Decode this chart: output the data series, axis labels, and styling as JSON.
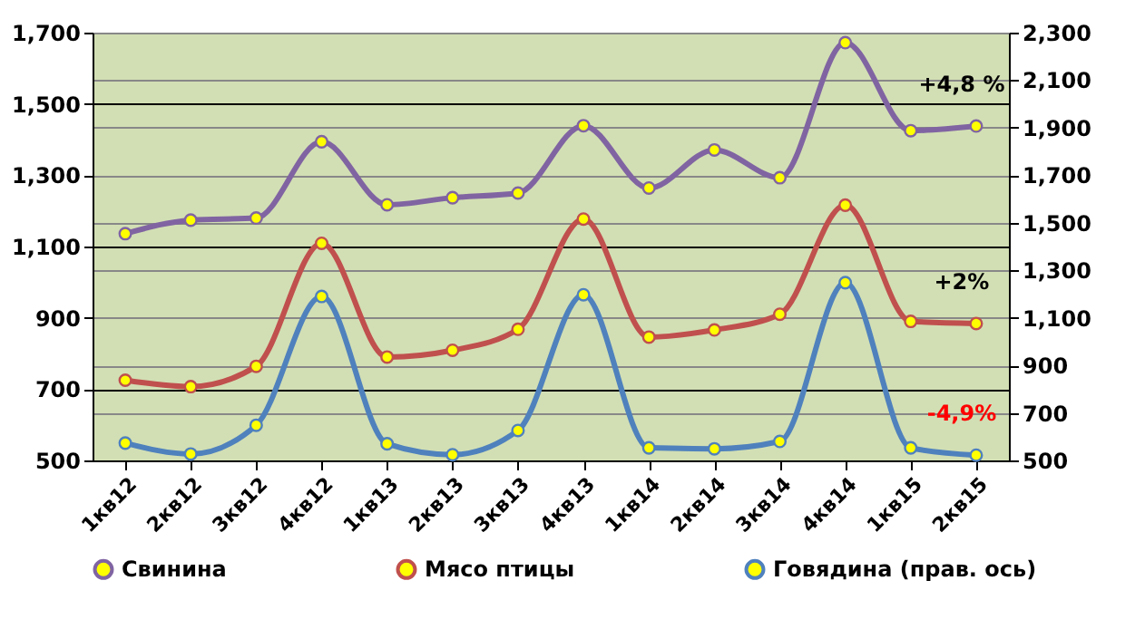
{
  "chart_data": {
    "type": "line",
    "categories": [
      "1кв12",
      "2кв12",
      "3кв12",
      "4кв12",
      "1кв13",
      "2кв13",
      "3кв13",
      "4кв13",
      "1кв14",
      "2кв14",
      "3кв14",
      "4кв14",
      "1кв15",
      "2кв15"
    ],
    "series": [
      {
        "name": "Свинина",
        "color": "#8064a2",
        "values": [
          1136,
          1174,
          1180,
          1394,
          1217,
          1237,
          1250,
          1439,
          1264,
          1371,
          1293,
          1672,
          1425,
          1438
        ]
      },
      {
        "name": "Мясо птицы",
        "color": "#c0504d",
        "values": [
          725,
          707,
          764,
          1109,
          790,
          809,
          868,
          1177,
          846,
          866,
          910,
          1216,
          890,
          884
        ]
      },
      {
        "name": "Говядина (прав. ось)",
        "color": "#4f81bd",
        "axis": "y2",
        "values": [
          573,
          527,
          648,
          1190,
          570,
          524,
          626,
          1197,
          553,
          549,
          580,
          1248,
          553,
          522
        ]
      }
    ],
    "ylim": [
      500,
      1700
    ],
    "yticks": [
      500,
      700,
      900,
      {
        "value": 1100,
        "label": "1,100"
      },
      {
        "value": 1300,
        "label": "1,300"
      },
      {
        "value": 1500,
        "label": "1,500"
      },
      {
        "value": 1700,
        "label": "1,700"
      }
    ],
    "y2lim": [
      500,
      2300
    ],
    "y2ticks": [
      500,
      700,
      900,
      {
        "value": 1100,
        "label": "1,100"
      },
      {
        "value": 1300,
        "label": "1,300"
      },
      {
        "value": 1500,
        "label": "1,500"
      },
      {
        "value": 1700,
        "label": "1,700"
      },
      {
        "value": 1900,
        "label": "1,900"
      },
      {
        "value": 2100,
        "label": "2,100"
      },
      {
        "value": 2300,
        "label": "2,300"
      }
    ],
    "grid": true,
    "legend": "bottom",
    "marker": "circle",
    "line_style": "solid",
    "annotations": [
      "+4,8 %",
      "+2%",
      "-4,9%"
    ]
  }
}
